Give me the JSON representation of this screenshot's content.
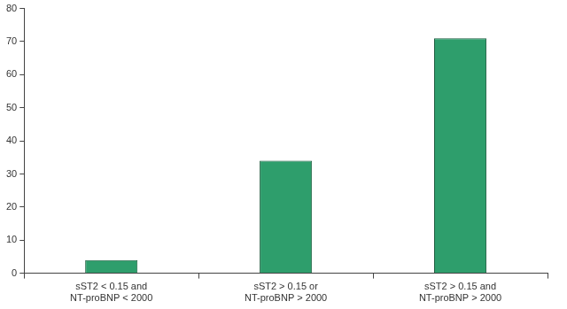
{
  "chart_data": {
    "type": "bar",
    "categories": [
      "sST2 < 0.15 and\nNT-proBNP < 2000",
      "sST2 > 0.15 or\nNT-proBNP > 2000",
      "sST2 > 0.15 and\nNT-proBNP > 2000"
    ],
    "values": [
      4,
      34,
      71
    ],
    "color": "#2e9e6c",
    "ylim": [
      0,
      80
    ],
    "yticks": [
      0,
      10,
      20,
      30,
      40,
      50,
      60,
      70,
      80
    ],
    "grid": false
  }
}
